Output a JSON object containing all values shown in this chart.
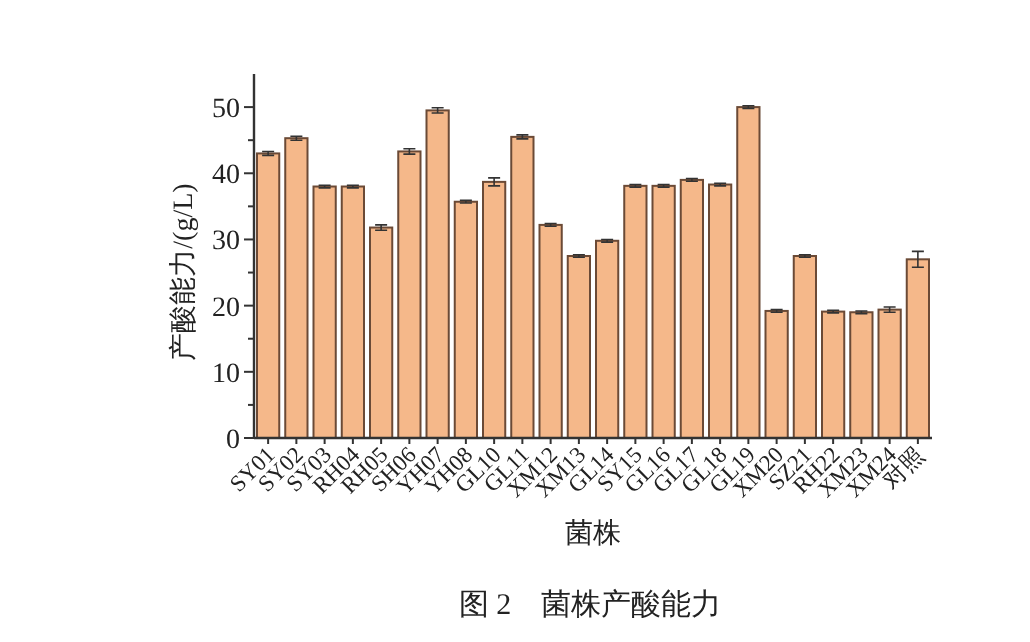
{
  "chart_data": {
    "type": "bar",
    "xlabel": "菌株",
    "ylabel": "产酸能力/(g/L)",
    "annotations": [
      "图 2　菌株产酸能力"
    ],
    "categories": [
      "SY01",
      "SY02",
      "SY03",
      "RH04",
      "RH05",
      "SH06",
      "YH07",
      "YH08",
      "GL10",
      "GL11",
      "XM12",
      "XM13",
      "GL14",
      "SY15",
      "GL16",
      "GL17",
      "GL18",
      "GL19",
      "XM20",
      "SZ21",
      "RH22",
      "XM23",
      "XM24",
      "对照"
    ],
    "values": [
      43,
      45.3,
      38,
      38,
      31.8,
      43.3,
      49.5,
      35.7,
      38.7,
      45.5,
      32.2,
      27.5,
      29.8,
      38.1,
      38.1,
      39,
      38.3,
      50,
      19.2,
      27.5,
      19.1,
      19,
      19.4,
      27
    ],
    "errors": [
      0.3,
      0.3,
      0.2,
      0.2,
      0.4,
      0.4,
      0.4,
      0.2,
      0.6,
      0.3,
      0.2,
      0.2,
      0.2,
      0.2,
      0.2,
      0.2,
      0.2,
      0.2,
      0.2,
      0.2,
      0.2,
      0.2,
      0.4,
      1.2
    ],
    "color": "#f5b88a",
    "ylim": [
      0,
      55
    ],
    "yticks": [
      0,
      10,
      20,
      30,
      40,
      50
    ],
    "grid": false
  }
}
